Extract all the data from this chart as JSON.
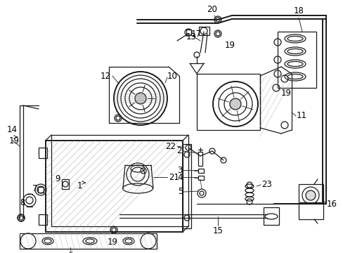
{
  "bg_color": "#ffffff",
  "line_color": "#1a1a1a",
  "figsize": [
    4.89,
    3.6
  ],
  "dpi": 100,
  "label_fs": 8.5,
  "lw_main": 0.9,
  "lw_thick": 1.4,
  "lw_thin": 0.5
}
